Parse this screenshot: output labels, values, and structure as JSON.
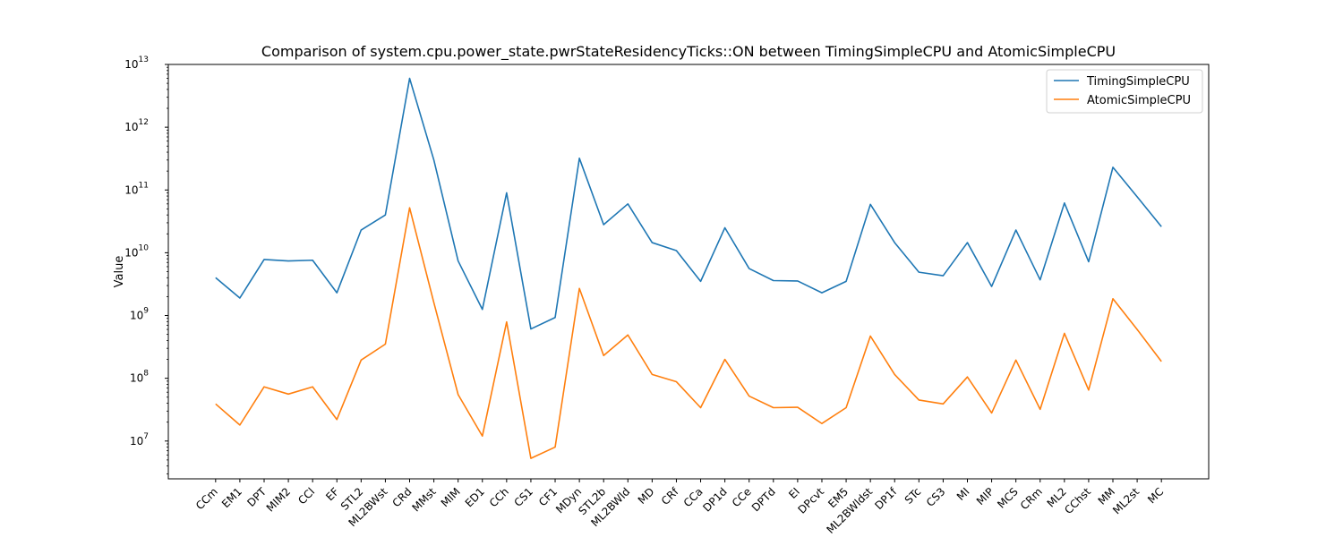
{
  "chart_data": {
    "type": "line",
    "title": "Comparison of system.cpu.power_state.pwrStateResidencyTicks::ON between TimingSimpleCPU and AtomicSimpleCPU",
    "xlabel": "",
    "ylabel": "Value",
    "yscale": "log",
    "ylim": [
      2500000.0,
      10000000000000.0
    ],
    "yticks": [
      {
        "value": 10000000.0,
        "base": "10",
        "exp": "7"
      },
      {
        "value": 100000000.0,
        "base": "10",
        "exp": "8"
      },
      {
        "value": 1000000000.0,
        "base": "10",
        "exp": "9"
      },
      {
        "value": 10000000000.0,
        "base": "10",
        "exp": "10"
      },
      {
        "value": 100000000000.0,
        "base": "10",
        "exp": "11"
      },
      {
        "value": 1000000000000.0,
        "base": "10",
        "exp": "12"
      },
      {
        "value": 10000000000000.0,
        "base": "10",
        "exp": "13"
      }
    ],
    "grid": false,
    "legend_position": "top-right",
    "categories": [
      "CCm",
      "EM1",
      "DPT",
      "MIM2",
      "CCl",
      "EF",
      "STL2",
      "ML2BWst",
      "CRd",
      "MMst",
      "MIM",
      "ED1",
      "CCh",
      "CS1",
      "CF1",
      "MDyn",
      "STL2b",
      "ML2BWld",
      "MD",
      "CRf",
      "CCa",
      "DP1d",
      "CCe",
      "DPTd",
      "EI",
      "DPcvt",
      "EM5",
      "ML2BWldst",
      "DP1f",
      "STc",
      "CS3",
      "MI",
      "MIP",
      "MCS",
      "CRm",
      "ML2",
      "CChst",
      "MM",
      "ML2st",
      "MC"
    ],
    "series": [
      {
        "name": "TimingSimpleCPU",
        "color": "#1f77b4",
        "values": [
          4000000000.0,
          1900000000.0,
          7800000000.0,
          7400000000.0,
          7600000000.0,
          2300000000.0,
          23000000000.0,
          40000000000.0,
          6000000000000.0,
          300000000000.0,
          7400000000.0,
          1250000000.0,
          90000000000.0,
          610000000.0,
          930000000.0,
          320000000000.0,
          28000000000.0,
          60000000000.0,
          14500000000.0,
          10800000000.0,
          3500000000.0,
          25000000000.0,
          5600000000.0,
          3600000000.0,
          3550000000.0,
          2300000000.0,
          3500000000.0,
          59000000000.0,
          14500000000.0,
          4900000000.0,
          4300000000.0,
          14500000000.0,
          2900000000.0,
          23000000000.0,
          3700000000.0,
          62000000000.0,
          7200000000.0,
          230000000000.0,
          78000000000.0,
          26000000000.0
        ]
      },
      {
        "name": "AtomicSimpleCPU",
        "color": "#ff7f0e",
        "values": [
          39000000.0,
          18000000.0,
          73000000.0,
          56000000.0,
          73000000.0,
          22000000.0,
          195000000.0,
          350000000.0,
          52000000000.0,
          1600000000.0,
          55000000.0,
          12000000.0,
          790000000.0,
          5300000.0,
          8000000.0,
          2700000000.0,
          230000000.0,
          490000000.0,
          115000000.0,
          88000000.0,
          34000000.0,
          200000000.0,
          52000000.0,
          34000000.0,
          34500000.0,
          19000000.0,
          34000000.0,
          470000000.0,
          115000000.0,
          45000000.0,
          39000000.0,
          105000000.0,
          28000000.0,
          195000000.0,
          32000000.0,
          520000000.0,
          65000000.0,
          1850000000.0,
          600000000.0,
          185000000.0
        ]
      }
    ]
  }
}
